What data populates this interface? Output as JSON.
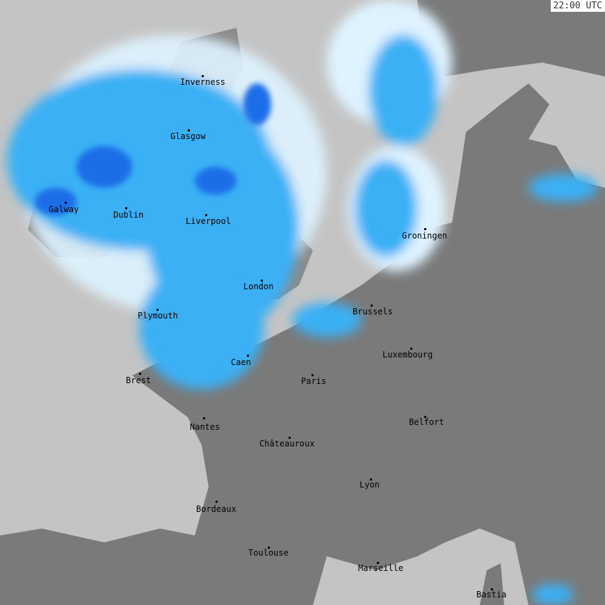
{
  "timestamp": "22:00 UTC",
  "colors": {
    "sea": "#c4c4c4",
    "land": "#7a7a7a",
    "radar_light": "#dff3ff",
    "radar_mid": "#3ab0f5",
    "radar_heavy": "#1a6ee8",
    "radar_intense": "#4a3cf0"
  },
  "cities": [
    {
      "name": "Inverness"
    },
    {
      "name": "Glasgow"
    },
    {
      "name": "Galway"
    },
    {
      "name": "Dublin"
    },
    {
      "name": "Liverpool"
    },
    {
      "name": "London"
    },
    {
      "name": "Plymouth"
    },
    {
      "name": "Brussels"
    },
    {
      "name": "Groningen"
    },
    {
      "name": "Luxembourg"
    },
    {
      "name": "Caen"
    },
    {
      "name": "Paris"
    },
    {
      "name": "Brest"
    },
    {
      "name": "Nantes"
    },
    {
      "name": "Belfort"
    },
    {
      "name": "Châteauroux"
    },
    {
      "name": "Lyon"
    },
    {
      "name": "Bordeaux"
    },
    {
      "name": "Toulouse"
    },
    {
      "name": "Marseille"
    },
    {
      "name": "Bastia"
    }
  ]
}
